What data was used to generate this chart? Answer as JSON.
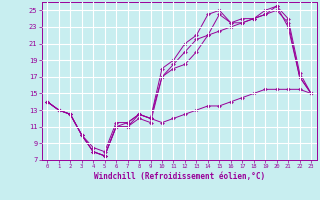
{
  "xlabel": "Windchill (Refroidissement éolien,°C)",
  "background_color": "#c8eef0",
  "line_color": "#990099",
  "grid_color": "#ffffff",
  "xlim": [
    -0.5,
    23.5
  ],
  "ylim": [
    7,
    26
  ],
  "yticks": [
    7,
    9,
    11,
    13,
    15,
    17,
    19,
    21,
    23,
    25
  ],
  "xticks": [
    0,
    1,
    2,
    3,
    4,
    5,
    6,
    7,
    8,
    9,
    10,
    11,
    12,
    13,
    14,
    15,
    16,
    17,
    18,
    19,
    20,
    21,
    22,
    23
  ],
  "lines": [
    {
      "x": [
        0,
        1,
        2,
        3,
        4,
        5,
        6,
        7,
        8,
        9,
        10,
        11,
        12,
        13,
        14,
        15,
        16,
        17,
        18,
        19,
        20,
        21,
        22,
        23
      ],
      "y": [
        14,
        13,
        12.5,
        10,
        8,
        7.5,
        11,
        11,
        12.5,
        12,
        11.5,
        12,
        12.5,
        13,
        13.5,
        13.5,
        14,
        14.5,
        15,
        15.5,
        15.5,
        15.5,
        15.5,
        15
      ]
    },
    {
      "x": [
        0,
        1,
        2,
        3,
        4,
        5,
        6,
        7,
        8,
        9,
        10,
        11,
        12,
        13,
        14,
        15,
        16,
        17,
        18,
        19,
        20,
        21,
        22,
        23
      ],
      "y": [
        14,
        13,
        12.5,
        10,
        8,
        7.5,
        11,
        11,
        12,
        11.5,
        17,
        18,
        18.5,
        20,
        22,
        22.5,
        23,
        23.5,
        24,
        24.5,
        25,
        23.5,
        17,
        15
      ]
    },
    {
      "x": [
        0,
        1,
        2,
        3,
        4,
        5,
        6,
        7,
        8,
        9,
        10,
        11,
        12,
        13,
        14,
        15,
        16,
        17,
        18,
        19,
        20,
        21,
        22,
        23
      ],
      "y": [
        14,
        13,
        12.5,
        10,
        8.5,
        8,
        11.5,
        11.5,
        12.5,
        12,
        18,
        19,
        21,
        22,
        24.5,
        25,
        23.5,
        24,
        24,
        24.5,
        25.5,
        24,
        17.5,
        15
      ]
    },
    {
      "x": [
        0,
        1,
        2,
        3,
        4,
        5,
        6,
        7,
        8,
        9,
        10,
        11,
        12,
        13,
        14,
        15,
        16,
        17,
        18,
        19,
        20,
        21,
        22,
        23
      ],
      "y": [
        14,
        13,
        12.5,
        10,
        8,
        7.5,
        11,
        11.5,
        12.5,
        12,
        17,
        18.5,
        20,
        21.5,
        22,
        24.5,
        23.5,
        23.5,
        24,
        25,
        25.5,
        23,
        17,
        15
      ]
    }
  ]
}
